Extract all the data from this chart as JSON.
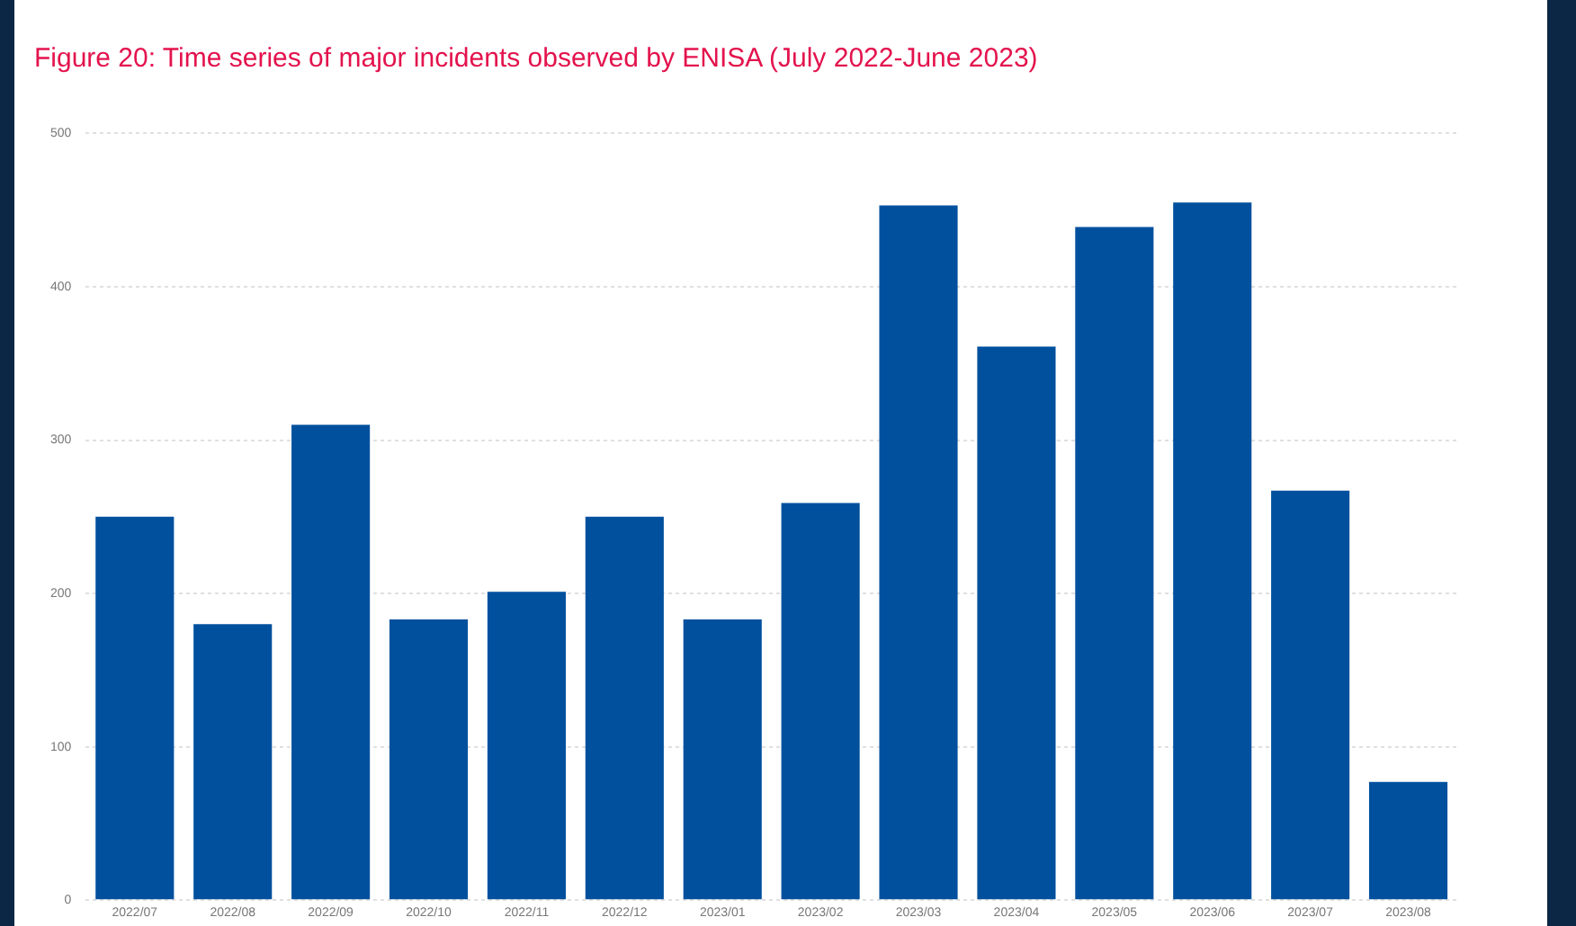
{
  "chart_data": {
    "type": "bar",
    "title": "Figure 20: Time series of major incidents observed by ENISA (July 2022-June 2023)",
    "categories": [
      "2022/07",
      "2022/08",
      "2022/09",
      "2022/10",
      "2022/11",
      "2022/12",
      "2023/01",
      "2023/02",
      "2023/03",
      "2023/04",
      "2023/05",
      "2023/06",
      "2023/07",
      "2023/08"
    ],
    "values": [
      250,
      180,
      310,
      183,
      201,
      250,
      183,
      259,
      453,
      361,
      439,
      455,
      267,
      77
    ],
    "color": "#00509e",
    "ylim": [
      0,
      500
    ],
    "yticks": [
      0,
      100,
      200,
      300,
      400,
      500
    ],
    "grid": "y",
    "legend": false
  }
}
